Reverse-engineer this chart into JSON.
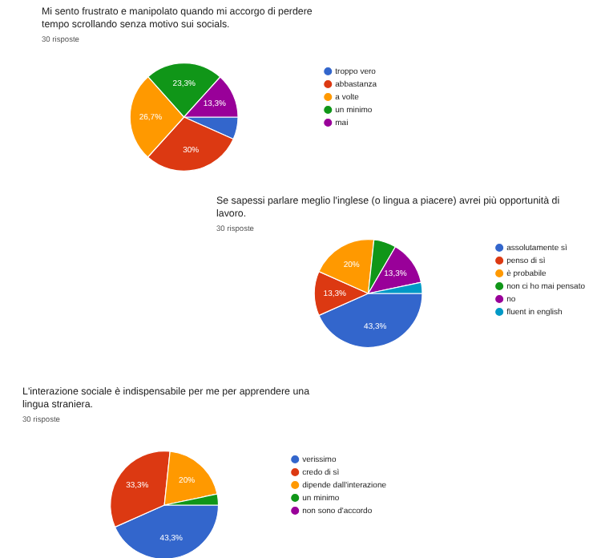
{
  "chart_data": [
    {
      "type": "pie",
      "title": "Mi sento frustrato e manipolato quando mi accorgo di perdere tempo scrollando senza motivo sui socials.",
      "subtitle": "30 risposte",
      "categories": [
        "troppo vero",
        "abbastanza",
        "a volte",
        "un minimo",
        "mai"
      ],
      "values": [
        6.7,
        30,
        26.7,
        23.3,
        13.3
      ],
      "colors": [
        "#3366cc",
        "#dc3912",
        "#ff9900",
        "#109618",
        "#990099"
      ],
      "value_labels": [
        null,
        "30%",
        "26,7%",
        "23,3%",
        "13,3%"
      ],
      "legend": "right"
    },
    {
      "type": "pie",
      "title": "Se sapessi parlare meglio l'inglese (o lingua a piacere) avrei più opportunità di lavoro.",
      "subtitle": "30 risposte",
      "categories": [
        "assolutamente sì",
        "penso di sì",
        "è probabile",
        "non ci ho mai pensato",
        "no",
        "fluent in english"
      ],
      "values": [
        43.3,
        13.3,
        20,
        6.7,
        13.3,
        3.3
      ],
      "colors": [
        "#3366cc",
        "#dc3912",
        "#ff9900",
        "#109618",
        "#990099",
        "#0099c6"
      ],
      "value_labels": [
        "43,3%",
        "13,3%",
        "20%",
        null,
        "13,3%",
        null
      ],
      "legend": "right"
    },
    {
      "type": "pie",
      "title": "L'interazione sociale è indispensabile per me per apprendere una lingua straniera.",
      "subtitle": "30 risposte",
      "categories": [
        "verissimo",
        "credo di sì",
        "dipende dall'interazione",
        "un minimo",
        "non sono d'accordo"
      ],
      "values": [
        43.3,
        33.3,
        20,
        3.3,
        0
      ],
      "colors": [
        "#3366cc",
        "#dc3912",
        "#ff9900",
        "#109618",
        "#990099"
      ],
      "value_labels": [
        "43,3%",
        "33,3%",
        "20%",
        null,
        null
      ],
      "legend": "right"
    }
  ]
}
